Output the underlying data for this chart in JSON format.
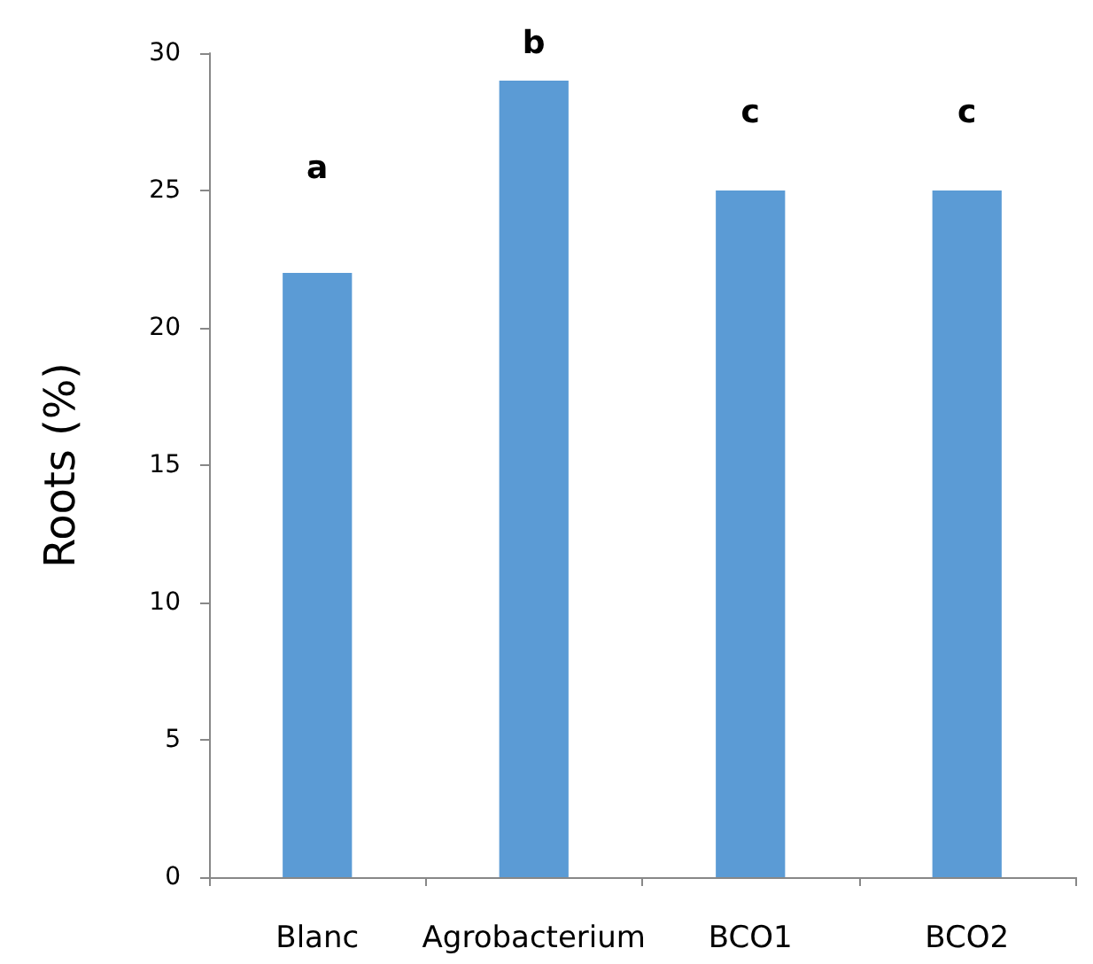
{
  "chart_data": {
    "type": "bar",
    "ylabel": "Roots (%)",
    "categories": [
      "Blanc",
      "Agrobacterium",
      "BCO1",
      "BCO2"
    ],
    "values": [
      22,
      29,
      25,
      25
    ],
    "color": "#5b9bd5",
    "ylim": [
      0,
      30
    ],
    "yticks": [
      0,
      5,
      10,
      15,
      20,
      25,
      30
    ],
    "grid": false,
    "annotations": [
      "a",
      "b",
      "c",
      "c"
    ]
  }
}
